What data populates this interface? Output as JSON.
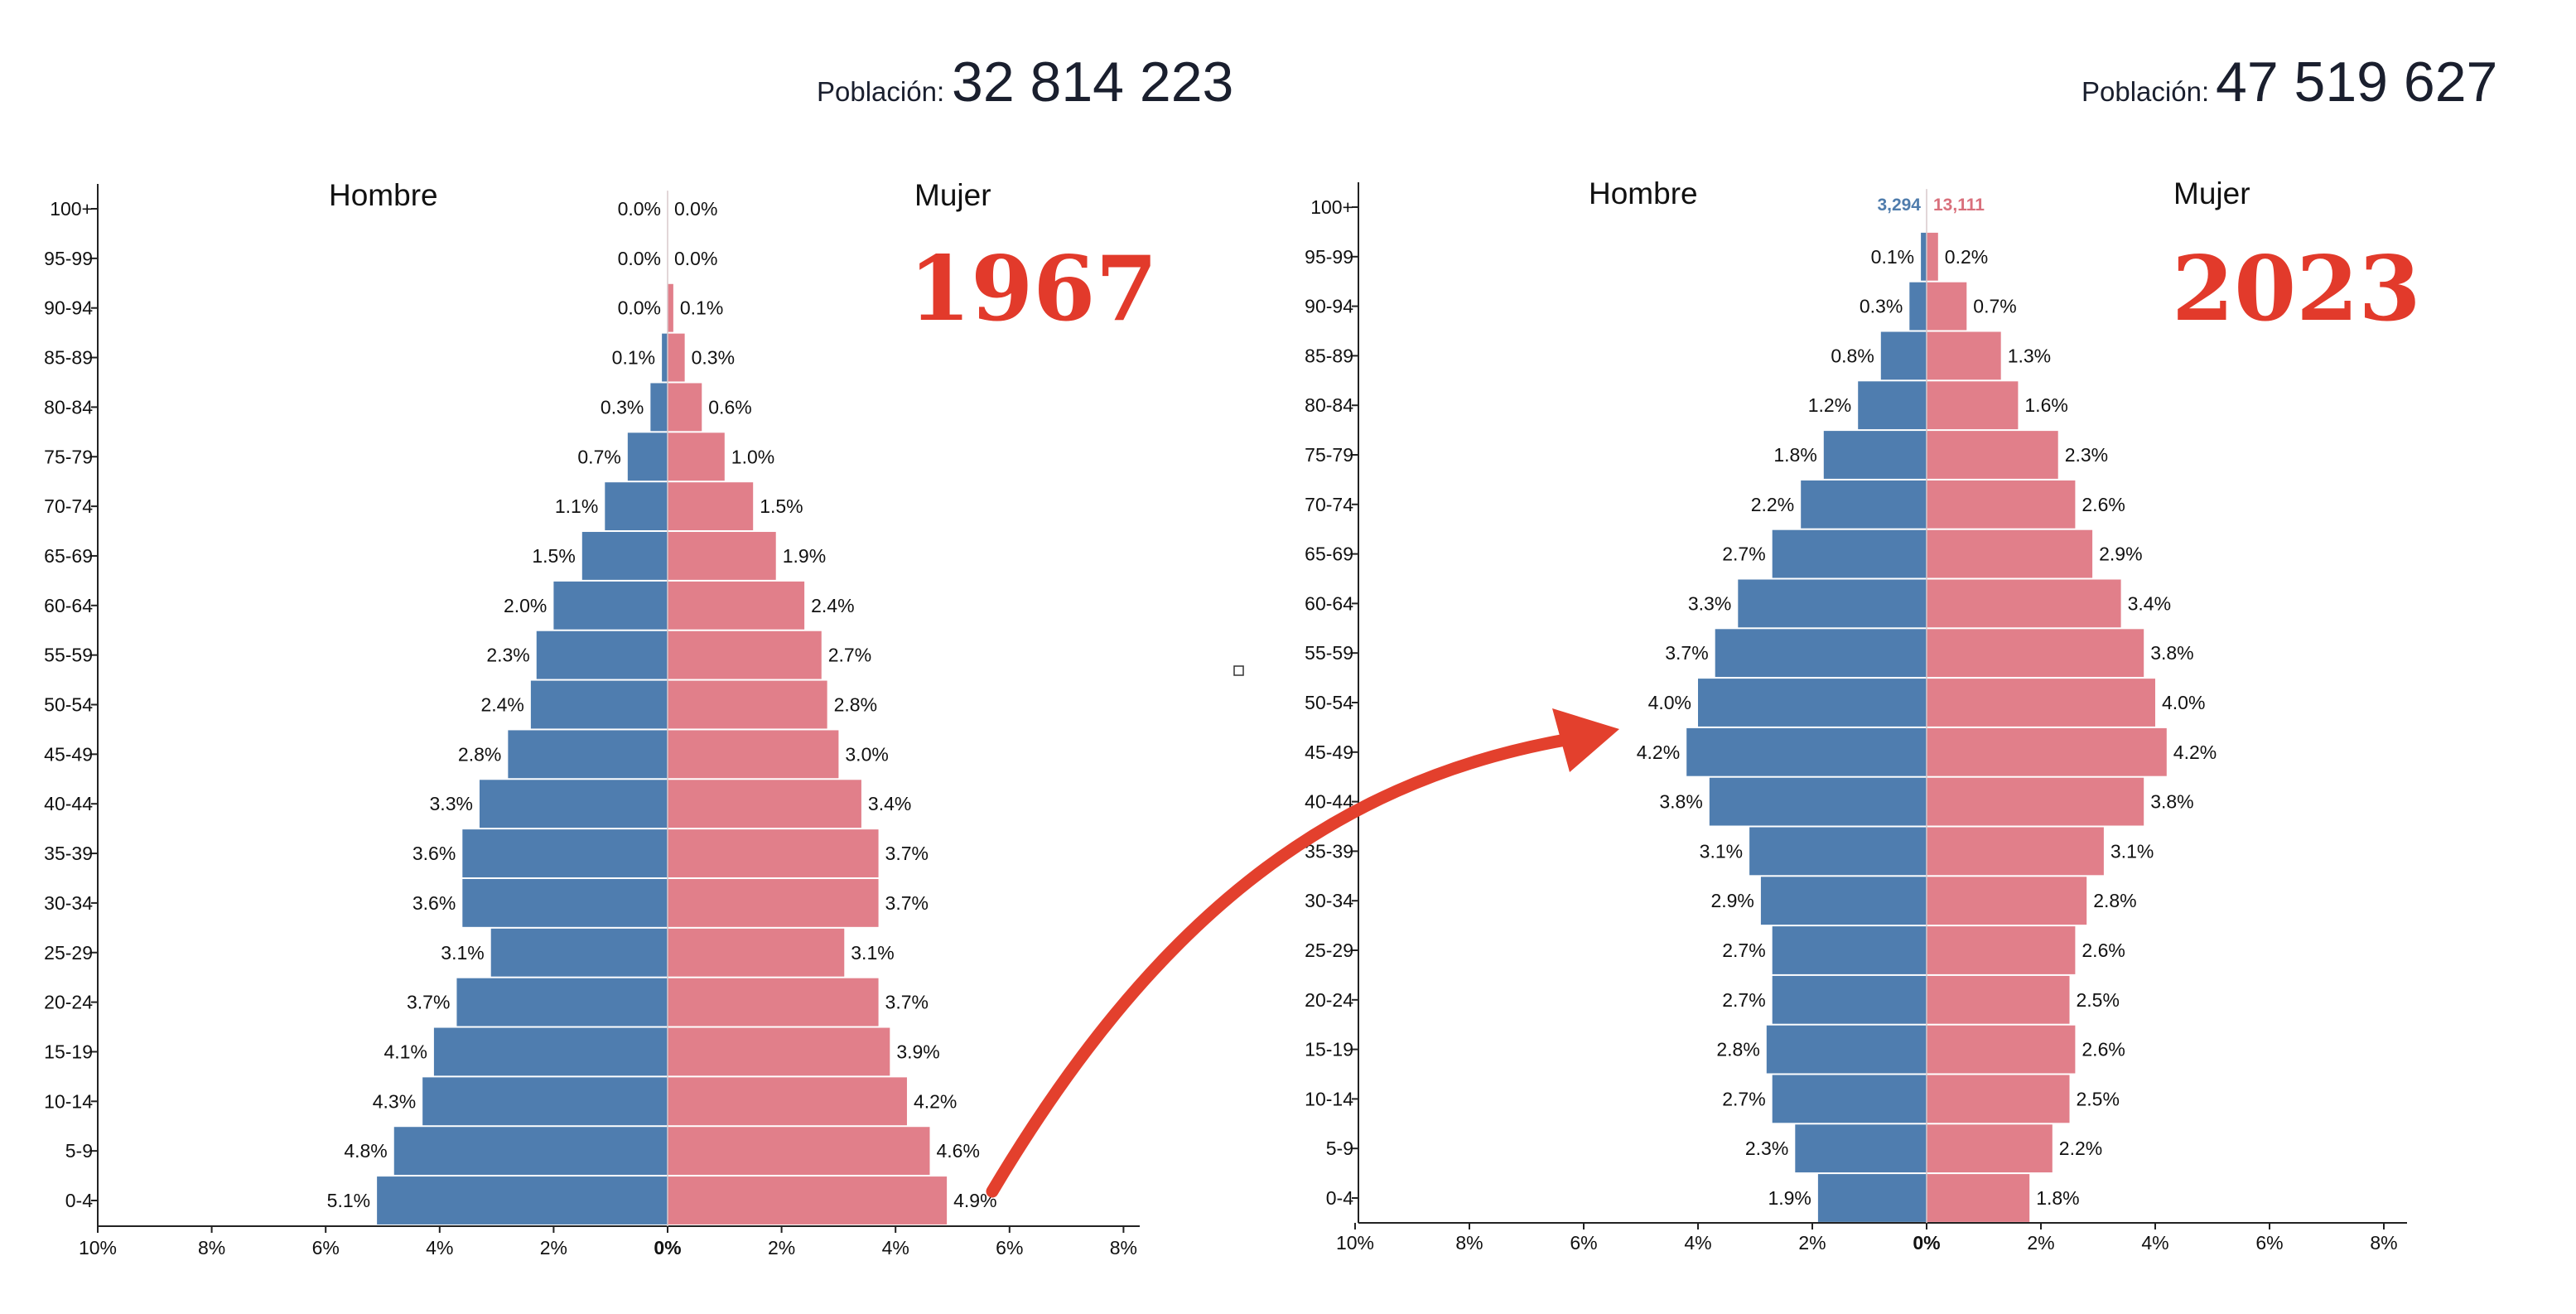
{
  "colors": {
    "male": "#4f7daf",
    "female": "#e17f8a",
    "arrow": "#e3402d",
    "year": "#e23a2b"
  },
  "chart_data": [
    {
      "type": "bar",
      "subtype": "population-pyramid",
      "year_label": "1967",
      "population_label": "Población:",
      "population_value": "32 814 223",
      "male_label": "Hombre",
      "female_label": "Mujer",
      "categories": [
        "100+",
        "95-99",
        "90-94",
        "85-89",
        "80-84",
        "75-79",
        "70-74",
        "65-69",
        "60-64",
        "55-59",
        "50-54",
        "45-49",
        "40-44",
        "35-39",
        "30-34",
        "25-29",
        "20-24",
        "15-19",
        "10-14",
        "5-9",
        "0-4"
      ],
      "series": [
        {
          "name": "Hombre",
          "values": [
            0.0,
            0.0,
            0.0,
            0.1,
            0.3,
            0.7,
            1.1,
            1.5,
            2.0,
            2.3,
            2.4,
            2.8,
            3.3,
            3.6,
            3.6,
            3.1,
            3.7,
            4.1,
            4.3,
            4.8,
            5.1
          ]
        },
        {
          "name": "Mujer",
          "values": [
            0.0,
            0.0,
            0.1,
            0.3,
            0.6,
            1.0,
            1.5,
            1.9,
            2.4,
            2.7,
            2.8,
            3.0,
            3.4,
            3.7,
            3.7,
            3.1,
            3.7,
            3.9,
            4.2,
            4.6,
            4.9
          ]
        }
      ],
      "xlim": [
        -10,
        8
      ],
      "x_ticks": [
        "10%",
        "8%",
        "6%",
        "4%",
        "2%",
        "0%",
        "2%",
        "4%",
        "6%",
        "8%"
      ]
    },
    {
      "type": "bar",
      "subtype": "population-pyramid",
      "year_label": "2023",
      "population_label": "Población:",
      "population_value": "47 519 627",
      "male_label": "Hombre",
      "female_label": "Mujer",
      "top_counts": {
        "male": "3,294",
        "female": "13,111"
      },
      "categories": [
        "100+",
        "95-99",
        "90-94",
        "85-89",
        "80-84",
        "75-79",
        "70-74",
        "65-69",
        "60-64",
        "55-59",
        "50-54",
        "45-49",
        "40-44",
        "35-39",
        "30-34",
        "25-29",
        "20-24",
        "15-19",
        "10-14",
        "5-9",
        "0-4"
      ],
      "series": [
        {
          "name": "Hombre",
          "values": [
            null,
            0.1,
            0.3,
            0.8,
            1.2,
            1.8,
            2.2,
            2.7,
            3.3,
            3.7,
            4.0,
            4.2,
            3.8,
            3.1,
            2.9,
            2.7,
            2.7,
            2.8,
            2.7,
            2.3,
            1.9
          ]
        },
        {
          "name": "Mujer",
          "values": [
            null,
            0.2,
            0.7,
            1.3,
            1.6,
            2.3,
            2.6,
            2.9,
            3.4,
            3.8,
            4.0,
            4.2,
            3.8,
            3.1,
            2.8,
            2.6,
            2.5,
            2.6,
            2.5,
            2.2,
            1.8
          ]
        }
      ],
      "xlim": [
        -10,
        8
      ],
      "x_ticks": [
        "10%",
        "8%",
        "6%",
        "4%",
        "2%",
        "0%",
        "2%",
        "4%",
        "6%",
        "8%"
      ]
    }
  ]
}
